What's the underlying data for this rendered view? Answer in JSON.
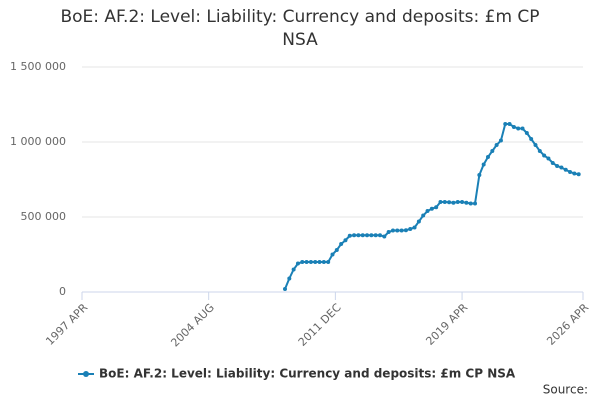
{
  "chart_data": {
    "type": "line",
    "title": "BoE: AF.2: Level: Liability: Currency and deposits: £m CP NSA",
    "source": "Source:",
    "x": [
      "2009-01",
      "2009-04",
      "2009-07",
      "2009-10",
      "2010-01",
      "2010-04",
      "2010-07",
      "2010-10",
      "2011-01",
      "2011-04",
      "2011-07",
      "2011-10",
      "2012-01",
      "2012-04",
      "2012-07",
      "2012-10",
      "2013-01",
      "2013-04",
      "2013-07",
      "2013-10",
      "2014-01",
      "2014-04",
      "2014-07",
      "2014-10",
      "2015-01",
      "2015-04",
      "2015-07",
      "2015-10",
      "2016-01",
      "2016-04",
      "2016-07",
      "2016-10",
      "2017-01",
      "2017-04",
      "2017-07",
      "2017-10",
      "2018-01",
      "2018-04",
      "2018-07",
      "2018-10",
      "2019-01",
      "2019-04",
      "2019-07",
      "2019-10",
      "2020-01",
      "2020-04",
      "2020-07",
      "2020-10",
      "2021-01",
      "2021-04",
      "2021-07",
      "2021-10",
      "2022-01",
      "2022-04",
      "2022-07",
      "2022-10",
      "2023-01",
      "2023-04",
      "2023-07",
      "2023-10",
      "2024-01",
      "2024-04",
      "2024-07",
      "2024-10",
      "2025-01",
      "2025-04",
      "2025-07",
      "2025-10",
      "2026-01"
    ],
    "series": [
      {
        "name": "BoE: AF.2: Level: Liability: Currency and deposits: £m CP NSA",
        "color": "#1a80b6",
        "values": [
          20000,
          90000,
          150000,
          190000,
          200000,
          200000,
          200000,
          200000,
          200000,
          200000,
          200000,
          250000,
          280000,
          320000,
          345000,
          375000,
          378000,
          378000,
          378000,
          378000,
          378000,
          378000,
          378000,
          370000,
          400000,
          410000,
          410000,
          410000,
          412000,
          420000,
          430000,
          470000,
          510000,
          540000,
          555000,
          565000,
          600000,
          600000,
          598000,
          595000,
          600000,
          600000,
          595000,
          590000,
          590000,
          780000,
          850000,
          900000,
          940000,
          980000,
          1010000,
          1120000,
          1120000,
          1100000,
          1090000,
          1090000,
          1060000,
          1020000,
          980000,
          940000,
          910000,
          890000,
          860000,
          840000,
          830000,
          815000,
          800000,
          790000,
          785000
        ]
      }
    ],
    "xlim": [
      "1997-04",
      "2026-04"
    ],
    "xticks": [
      {
        "value": "1997-04",
        "label": "1997 APR"
      },
      {
        "value": "2004-08",
        "label": "2004 AUG"
      },
      {
        "value": "2011-12",
        "label": "2011 DEC"
      },
      {
        "value": "2019-04",
        "label": "2019 APR"
      },
      {
        "value": "2026-04",
        "label": "2026 APR"
      }
    ],
    "ylim": [
      0,
      1500000
    ],
    "yticks": [
      0,
      {
        "value": 500000,
        "label": "500 000"
      },
      {
        "value": 1000000,
        "label": "1 000 000"
      },
      {
        "value": 1500000,
        "label": "1 500 000"
      }
    ],
    "grid": true
  }
}
